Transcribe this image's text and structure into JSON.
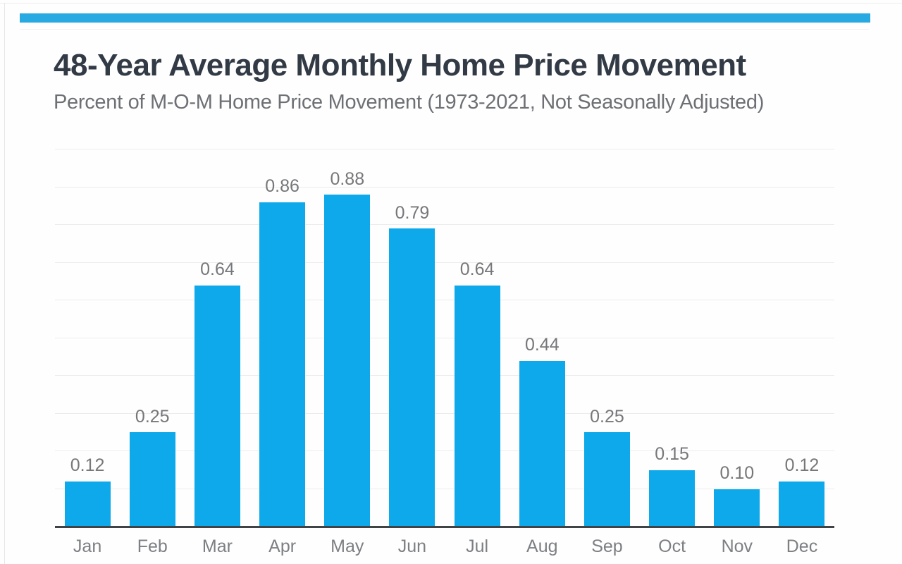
{
  "header": {
    "title": "48-Year Average Monthly Home Price Movement",
    "subtitle": "Percent of M-O-M Home Price Movement (1973-2021, Not Seasonally Adjusted)"
  },
  "chart_data": {
    "type": "bar",
    "title": "48-Year Average Monthly Home Price Movement",
    "subtitle": "Percent of M-O-M Home Price Movement (1973-2021, Not Seasonally Adjusted)",
    "categories": [
      "Jan",
      "Feb",
      "Mar",
      "Apr",
      "May",
      "Jun",
      "Jul",
      "Aug",
      "Sep",
      "Oct",
      "Nov",
      "Dec"
    ],
    "values": [
      0.12,
      0.25,
      0.64,
      0.86,
      0.88,
      0.79,
      0.64,
      0.44,
      0.25,
      0.15,
      0.1,
      0.12
    ],
    "value_labels": [
      "0.12",
      "0.25",
      "0.64",
      "0.86",
      "0.88",
      "0.79",
      "0.64",
      "0.44",
      "0.25",
      "0.15",
      "0.10",
      "0.12"
    ],
    "xlabel": "",
    "ylabel": "",
    "ylim": [
      0,
      1.0
    ],
    "gridline_interval": 0.1,
    "grid_visible": true,
    "legend": "none",
    "data_labels_position": "above-bars",
    "bar_color": "#0ea9ea"
  },
  "colors": {
    "accent_bar": "#27aae1",
    "bar": "#0ea9ea",
    "gridline": "#ececec",
    "axis_line": "#404346",
    "title_text": "#323a45",
    "subtitle_text": "#6d7074",
    "value_label_text": "#76777a",
    "month_label_text": "#7c7f83"
  }
}
